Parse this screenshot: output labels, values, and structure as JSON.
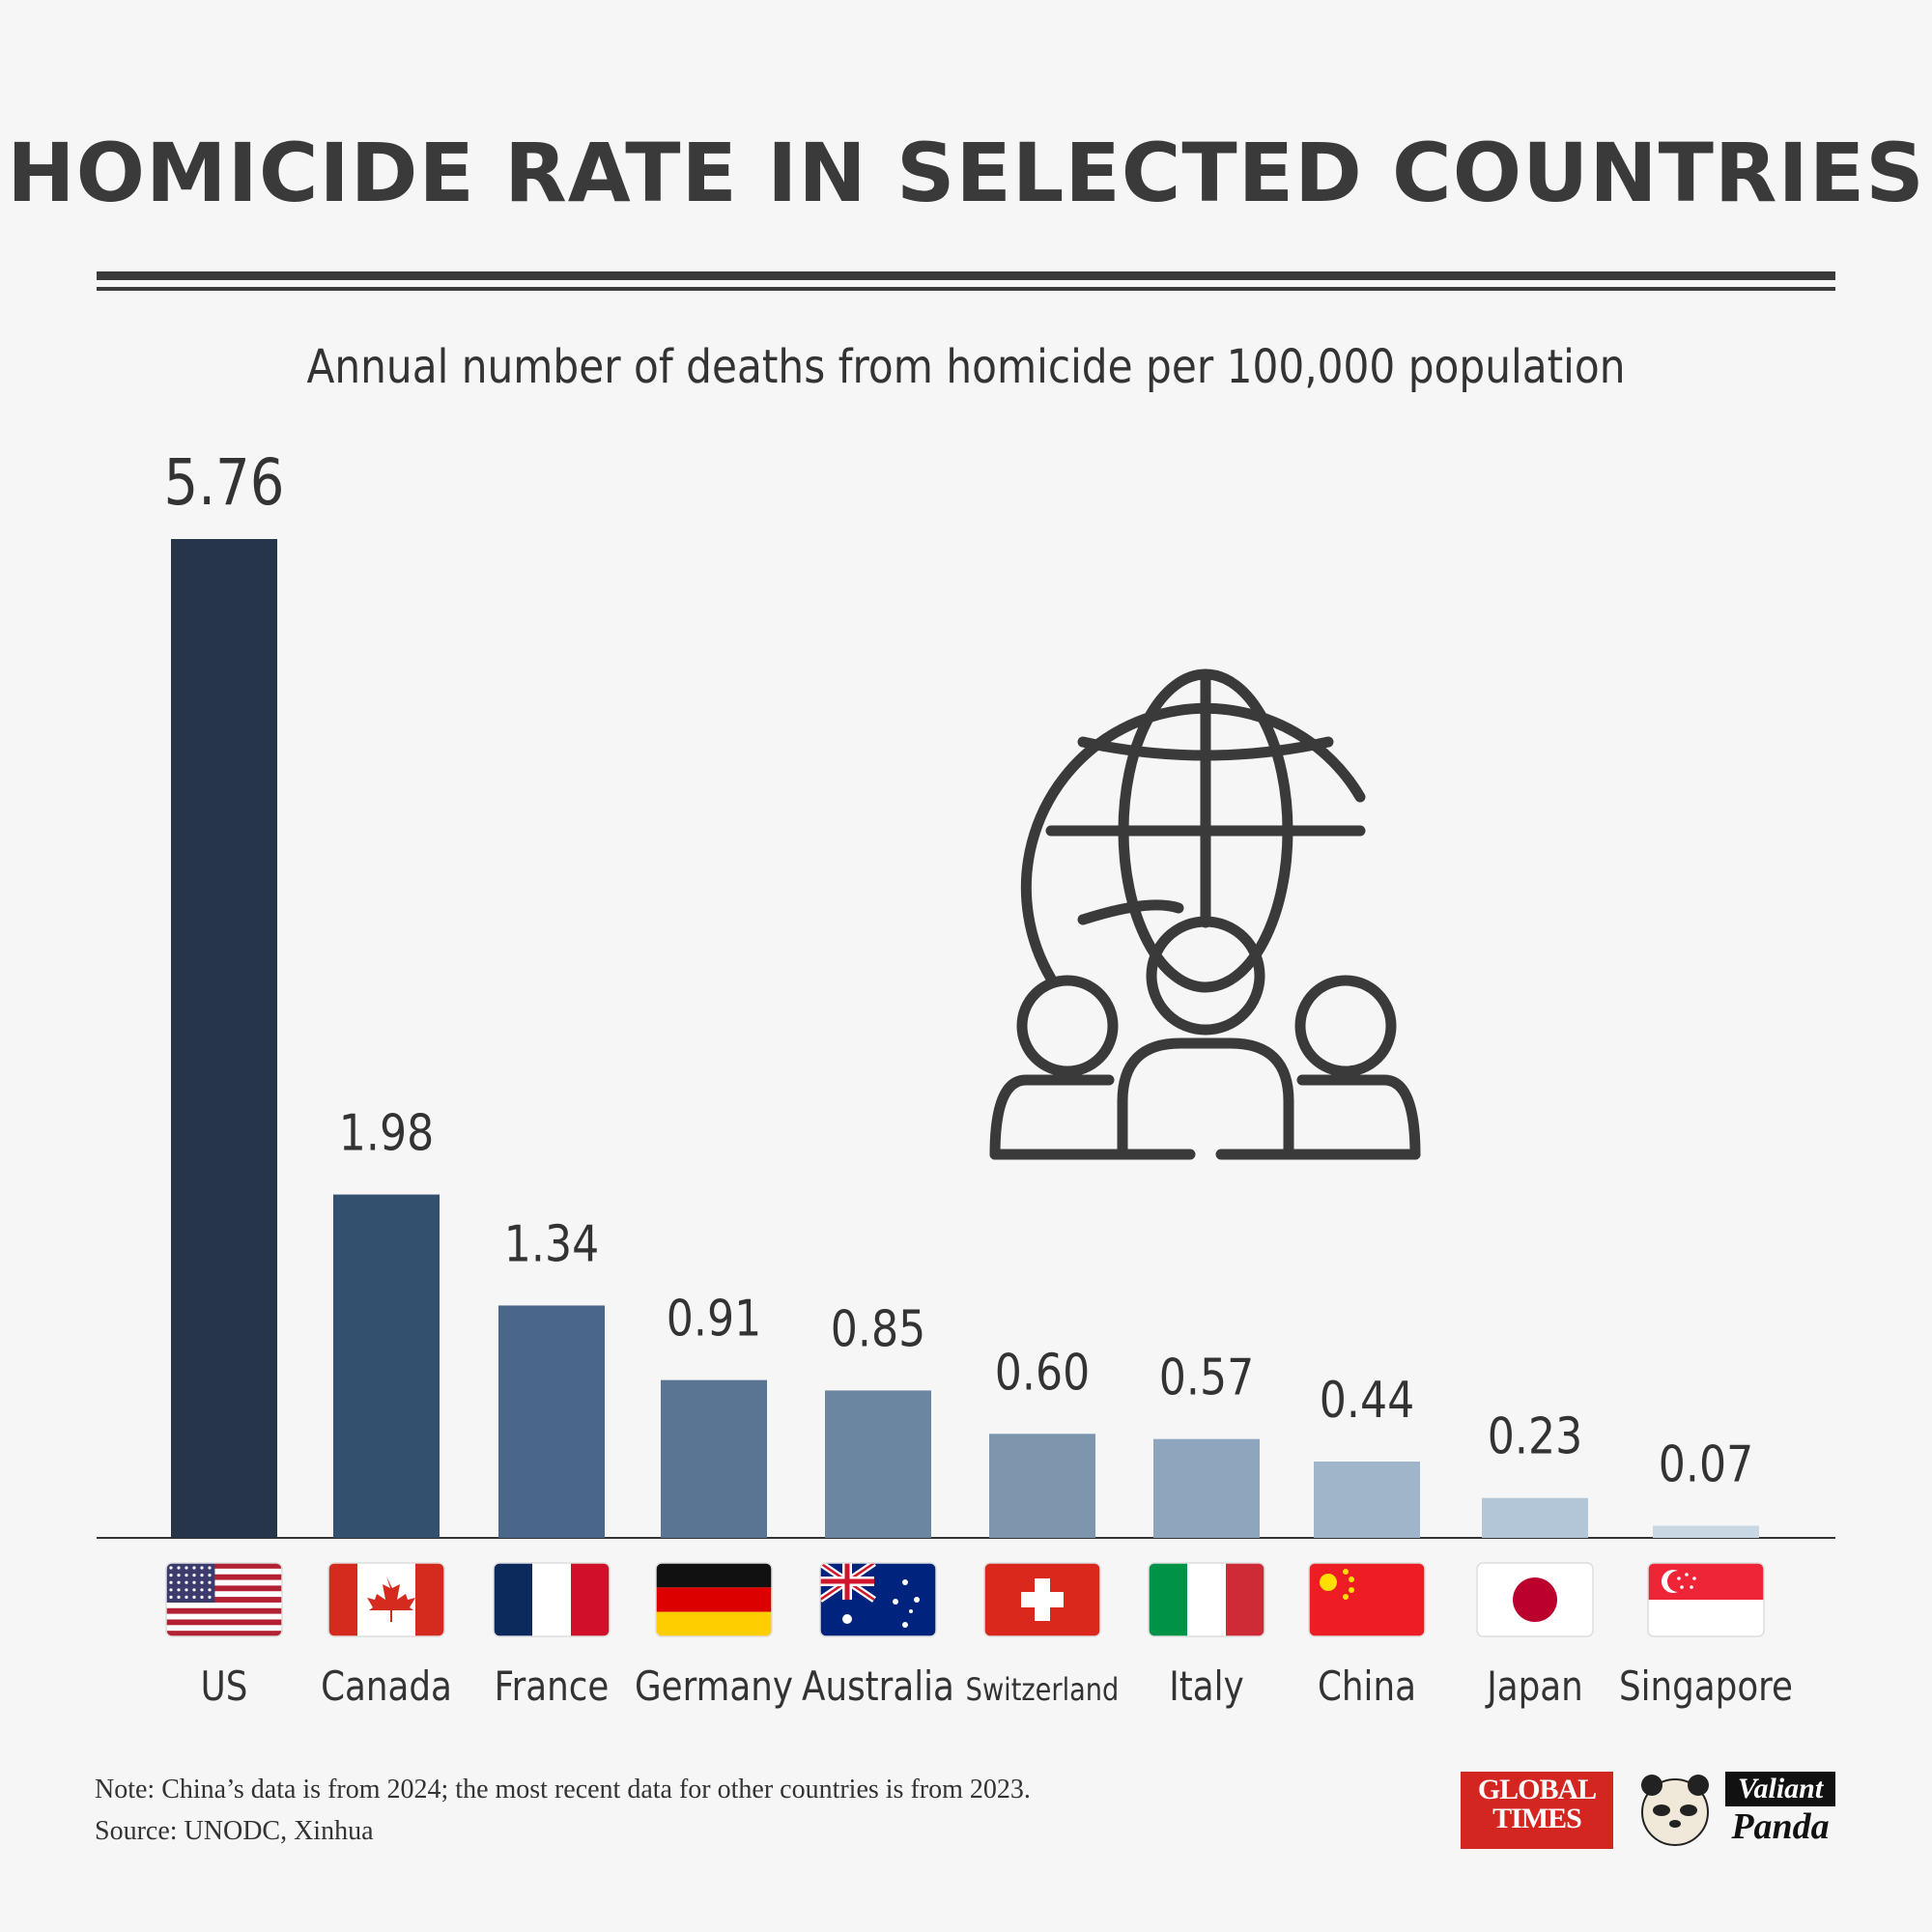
{
  "title": "HOMICIDE RATE IN SELECTED COUNTRIES",
  "subtitle": "Annual number of deaths from homicide per 100,000 population",
  "note": "Note: China’s data is from 2024; the most recent data for other countries is from 2023.",
  "source": "Source: UNODC, Xinhua",
  "logos": {
    "global_times_line1": "GLOBAL",
    "global_times_line2": "TIMES",
    "valiant": "Valiant",
    "panda": "Panda"
  },
  "colors": {
    "background": "#f6f6f6",
    "text": "#3a3a3a",
    "icon": "#3a3a3a"
  },
  "icon": "globe-with-people-icon",
  "chart_data": {
    "type": "bar",
    "categories": [
      "US",
      "Canada",
      "France",
      "Germany",
      "Australia",
      "Switzerland",
      "Italy",
      "China",
      "Japan",
      "Singapore"
    ],
    "values": [
      5.76,
      1.98,
      1.34,
      0.91,
      0.85,
      0.6,
      0.57,
      0.44,
      0.23,
      0.07
    ],
    "labels": [
      "5.76",
      "1.98",
      "1.34",
      "0.91",
      "0.85",
      "0.60",
      "0.57",
      "0.44",
      "0.23",
      "0.07"
    ],
    "bar_colors": [
      "#263549",
      "#33506f",
      "#4a6688",
      "#5a7593",
      "#6a86a1",
      "#7d96ae",
      "#8ea6bd",
      "#a0b5ca",
      "#b3c6d8",
      "#c9d7e5"
    ],
    "flags": [
      "us-flag",
      "canada-flag",
      "france-flag",
      "germany-flag",
      "australia-flag",
      "switzerland-flag",
      "italy-flag",
      "china-flag",
      "japan-flag",
      "singapore-flag"
    ],
    "ylim": [
      0,
      5.76
    ],
    "grid": false,
    "xlabel": "",
    "ylabel": ""
  }
}
